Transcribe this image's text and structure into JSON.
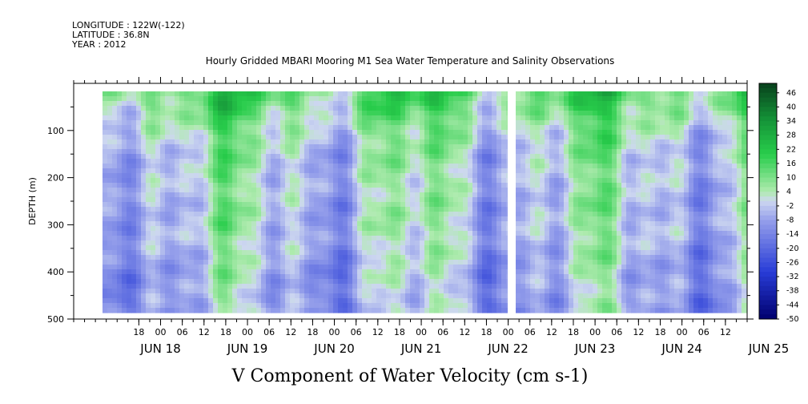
{
  "header": {
    "longitude": "LONGITUDE : 122W(-122)",
    "latitude": "LATITUDE : 36.8N",
    "year": "YEAR : 2012"
  },
  "chart_data": {
    "type": "heatmap",
    "title": "Hourly Gridded MBARI Mooring M1 Sea Water Temperature and Salinity Observations",
    "xlabel": "V Component of Water Velocity (cm s-1)",
    "ylabel": "DEPTH (m)",
    "ylim": [
      500,
      0
    ],
    "y_ticks": [
      100,
      200,
      300,
      400,
      500
    ],
    "x_hour_ticks": [
      "18",
      "00",
      "06",
      "12",
      "18",
      "00",
      "06",
      "12",
      "18",
      "00",
      "06",
      "12",
      "18",
      "00",
      "06",
      "12",
      "18",
      "00",
      "06",
      "12",
      "18",
      "00",
      "06",
      "12",
      "18",
      "00",
      "06",
      "12"
    ],
    "x_date_ticks": [
      "JUN 18",
      "JUN 19",
      "JUN 20",
      "JUN 21",
      "JUN 22",
      "JUN 23",
      "JUN 24",
      "JUN 25"
    ],
    "colorbar": {
      "ticks": [
        "46",
        "40",
        "34",
        "28",
        "22",
        "16",
        "10",
        "4",
        "-2",
        "-8",
        "-14",
        "-20",
        "-26",
        "-32",
        "-38",
        "-44",
        "-50"
      ],
      "range": [
        -50,
        50
      ],
      "scheme": "blue (negative) to green (positive)"
    },
    "data_gap": "between JUN 22 and JUN 23",
    "depth_profile": {
      "depth": [
        20,
        50,
        100,
        150,
        200,
        250,
        300,
        350,
        400,
        450,
        490
      ],
      "value": [
        14,
        10,
        4,
        1,
        0,
        -1,
        -1,
        -3,
        -5,
        -6,
        -6
      ]
    }
  }
}
